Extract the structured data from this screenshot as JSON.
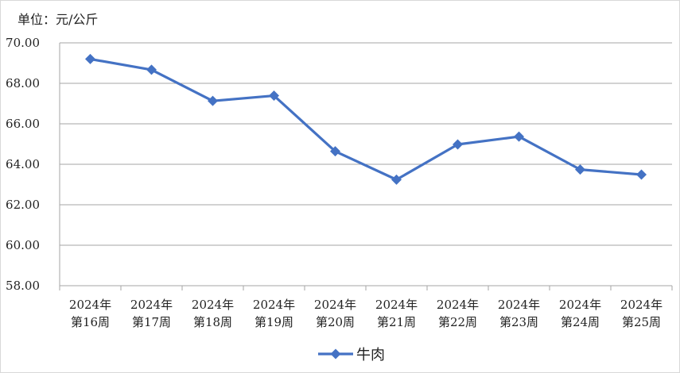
{
  "chart_data": {
    "type": "line",
    "unit_label": "单位：元/公斤",
    "categories": [
      [
        "2024年",
        "第16周"
      ],
      [
        "2024年",
        "第17周"
      ],
      [
        "2024年",
        "第18周"
      ],
      [
        "2024年",
        "第19周"
      ],
      [
        "2024年",
        "第20周"
      ],
      [
        "2024年",
        "第21周"
      ],
      [
        "2024年",
        "第22周"
      ],
      [
        "2024年",
        "第23周"
      ],
      [
        "2024年",
        "第24周"
      ],
      [
        "2024年",
        "第25周"
      ]
    ],
    "series": [
      {
        "name": "牛肉",
        "color": "#4472C4",
        "marker": "diamond",
        "values": [
          69.2,
          68.67,
          67.13,
          67.39,
          64.64,
          63.24,
          64.98,
          65.37,
          63.74,
          63.49
        ]
      }
    ],
    "ylim": [
      58,
      70
    ],
    "yticks": [
      "58.00",
      "60.00",
      "62.00",
      "64.00",
      "66.00",
      "68.00",
      "70.00"
    ],
    "grid": true,
    "legend_position": "bottom"
  }
}
